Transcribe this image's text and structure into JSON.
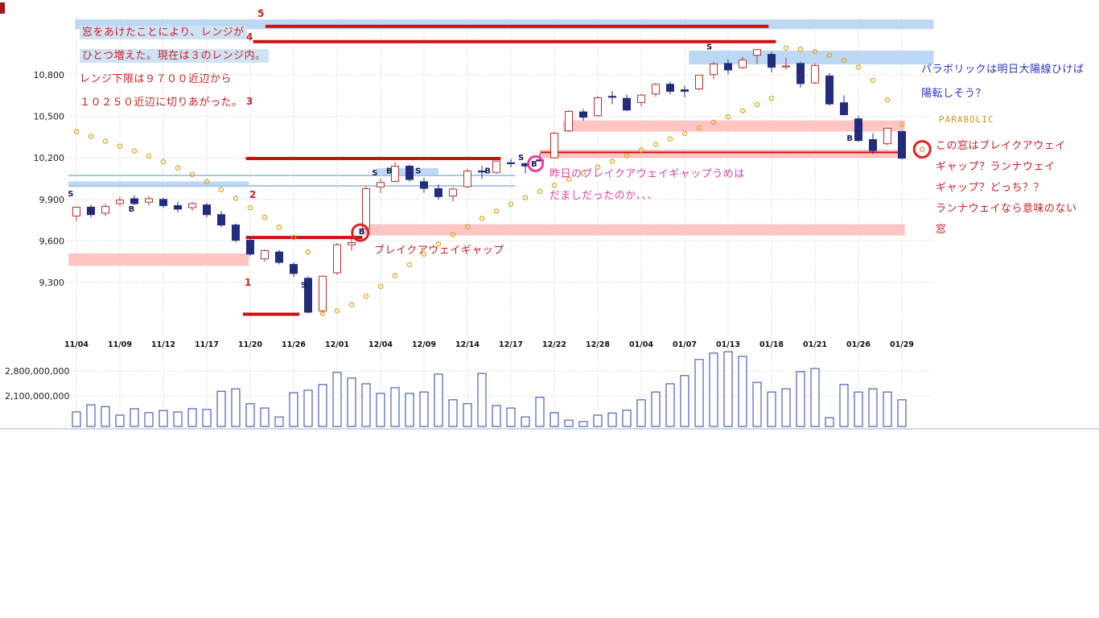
{
  "annotations": {
    "range_note": {
      "lines": [
        "窓をあけたことにより、レンジが",
        "ひとつ増えた。現在は３のレンジ内。",
        "レンジ下限は９７００近辺から",
        "１０２５０近辺に切りあがった。"
      ]
    },
    "parabolic_note": {
      "lines": [
        "パラボリックは明日大陽線ひけば",
        "陽転しそう？"
      ]
    },
    "indicator_label": "PARABOLIC",
    "gap_question": {
      "lines": [
        "この窓はブレイクアウェイ",
        "ギャップ？ランナウェイ",
        "ギャップ？どっち？？",
        "ランナウェイなら意味のない",
        "窓"
      ]
    },
    "gap_fill_note": {
      "lines": [
        "昨日のブレイクアウェイギャップうめは",
        "だましだったのか、、、"
      ]
    },
    "breakaway_label": "ブレイクアウェイギャップ",
    "range_numbers": [
      "1",
      "2",
      "3",
      "4",
      "5"
    ]
  },
  "chart_data": {
    "type": "candlestick+volume",
    "title": "",
    "xlabel": "",
    "ylabel": "",
    "grid": true,
    "x_labels_every": 3,
    "y_axis": {
      "ticks": [
        {
          "label": "10,800",
          "value": 10800
        },
        {
          "label": "10,500",
          "value": 10500
        },
        {
          "label": "10,200",
          "value": 10200
        },
        {
          "label": "9,900",
          "value": 9900
        },
        {
          "label": "9,600",
          "value": 9600
        },
        {
          "label": "9,300",
          "value": 9300
        }
      ]
    },
    "volume_axis": {
      "unit": "shares",
      "ticks": [
        {
          "label": "2,800,000,000",
          "value": 2800
        },
        {
          "label": "2,100,000,000",
          "value": 2100
        }
      ]
    },
    "candles": [
      [
        "11/04",
        9780,
        9850,
        9745,
        9844
      ],
      [
        "11/05",
        9844,
        9862,
        9770,
        9790
      ],
      [
        "11/06",
        9800,
        9870,
        9780,
        9850
      ],
      [
        "11/09",
        9870,
        9920,
        9850,
        9895
      ],
      [
        "11/10",
        9905,
        9930,
        9858,
        9870
      ],
      [
        "11/11",
        9880,
        9925,
        9855,
        9905
      ],
      [
        "11/12",
        9900,
        9912,
        9838,
        9855
      ],
      [
        "11/13",
        9855,
        9882,
        9808,
        9830
      ],
      [
        "11/16",
        9840,
        9882,
        9818,
        9870
      ],
      [
        "11/17",
        9860,
        9875,
        9770,
        9790
      ],
      [
        "11/18",
        9790,
        9815,
        9700,
        9715
      ],
      [
        "11/19",
        9715,
        9725,
        9590,
        9605
      ],
      [
        "11/20",
        9605,
        9625,
        9490,
        9505
      ],
      [
        "11/24",
        9470,
        9540,
        9450,
        9530
      ],
      [
        "11/25",
        9520,
        9535,
        9430,
        9445
      ],
      [
        "11/26",
        9430,
        9445,
        9340,
        9365
      ],
      [
        "11/27",
        9330,
        9345,
        9076,
        9085
      ],
      [
        "11/30",
        9095,
        9350,
        9076,
        9345
      ],
      [
        "12/01",
        9370,
        9585,
        9355,
        9572
      ],
      [
        "12/02",
        9572,
        9632,
        9528,
        9588
      ],
      [
        "12/03",
        9690,
        9995,
        9678,
        9977
      ],
      [
        "12/04",
        9990,
        10050,
        9945,
        10022
      ],
      [
        "12/07",
        10030,
        10170,
        10022,
        10140
      ],
      [
        "12/08",
        10140,
        10152,
        10028,
        10044
      ],
      [
        "12/09",
        10028,
        10058,
        9948,
        9980
      ],
      [
        "12/10",
        9978,
        10008,
        9898,
        9920
      ],
      [
        "12/11",
        9925,
        9985,
        9885,
        9975
      ],
      [
        "12/14",
        9992,
        10120,
        9982,
        10105
      ],
      [
        "12/15",
        10105,
        10142,
        10048,
        10100
      ],
      [
        "12/16",
        10095,
        10180,
        10085,
        10177
      ],
      [
        "12/17",
        10165,
        10192,
        10132,
        10163
      ],
      [
        "12/18",
        10158,
        10166,
        10088,
        10142
      ],
      [
        "12/21",
        10185,
        10232,
        10172,
        10183
      ],
      [
        "12/22",
        10200,
        10390,
        10195,
        10378
      ],
      [
        "12/24",
        10395,
        10545,
        10388,
        10536
      ],
      [
        "12/25",
        10532,
        10552,
        10468,
        10494
      ],
      [
        "12/28",
        10505,
        10648,
        10498,
        10634
      ],
      [
        "12/29",
        10645,
        10682,
        10588,
        10638
      ],
      [
        "12/30",
        10630,
        10658,
        10538,
        10546
      ],
      [
        "01/04",
        10600,
        10662,
        10572,
        10654
      ],
      [
        "01/05",
        10662,
        10742,
        10642,
        10731
      ],
      [
        "01/06",
        10732,
        10752,
        10658,
        10681
      ],
      [
        "01/07",
        10692,
        10722,
        10638,
        10681
      ],
      [
        "01/08",
        10698,
        10800,
        10690,
        10798
      ],
      [
        "01/12",
        10802,
        10892,
        10770,
        10879
      ],
      [
        "01/13",
        10882,
        10912,
        10802,
        10835
      ],
      [
        "01/14",
        10852,
        10930,
        10842,
        10907
      ],
      [
        "01/15",
        10942,
        10985,
        10878,
        10982
      ],
      [
        "01/18",
        10948,
        10968,
        10818,
        10855
      ],
      [
        "01/19",
        10862,
        10922,
        10838,
        10864
      ],
      [
        "01/20",
        10882,
        10892,
        10708,
        10737
      ],
      [
        "01/21",
        10742,
        10882,
        10732,
        10868
      ],
      [
        "01/22",
        10792,
        10812,
        10578,
        10590
      ],
      [
        "01/25",
        10598,
        10652,
        10508,
        10512
      ],
      [
        "01/26",
        10482,
        10502,
        10318,
        10325
      ],
      [
        "01/27",
        10332,
        10378,
        10228,
        10252
      ],
      [
        "01/28",
        10302,
        10418,
        10292,
        10414
      ],
      [
        "01/29",
        10390,
        10398,
        10188,
        10198
      ]
    ],
    "volumes_millions": [
      1650,
      1850,
      1800,
      1560,
      1740,
      1630,
      1690,
      1650,
      1740,
      1720,
      2230,
      2300,
      1880,
      1760,
      1510,
      2190,
      2260,
      2420,
      2760,
      2600,
      2440,
      2170,
      2330,
      2170,
      2210,
      2710,
      1990,
      1880,
      2730,
      1830,
      1760,
      1510,
      2060,
      1630,
      1420,
      1380,
      1560,
      1620,
      1700,
      1990,
      2210,
      2440,
      2670,
      3120,
      3300,
      3340,
      3210,
      2480,
      2210,
      2300,
      2780,
      2870,
      1490,
      2420,
      2210,
      2300,
      2210,
      1990
    ],
    "parabolic_sar": [
      10390,
      10355,
      10320,
      10285,
      10250,
      10212,
      10172,
      10128,
      10080,
      10028,
      9970,
      9908,
      9840,
      9770,
      9700,
      9625,
      9520,
      9076,
      9095,
      9140,
      9200,
      9272,
      9350,
      9428,
      9505,
      9578,
      9645,
      9705,
      9762,
      9815,
      9865,
      9912,
      9958,
      10002,
      10046,
      10090,
      10133,
      10175,
      10216,
      10257,
      10297,
      10337,
      10377,
      10417,
      10457,
      10497,
      10540,
      10585,
      10630,
      10995,
      10985,
      10968,
      10942,
      10905,
      10855,
      10760,
      10620,
      10440
    ],
    "sar_projected": {
      "i": 58.4,
      "p": 10262
    },
    "signal_markers": [
      {
        "i": -0.4,
        "p": 9940,
        "t": "S"
      },
      {
        "i": 3.8,
        "p": 9830,
        "t": "B"
      },
      {
        "i": 15.7,
        "p": 9280,
        "t": "S"
      },
      {
        "i": 19.7,
        "p": 9665,
        "t": "B"
      },
      {
        "i": 20.6,
        "p": 10090,
        "t": "S"
      },
      {
        "i": 21.6,
        "p": 10105,
        "t": "B"
      },
      {
        "i": 23.6,
        "p": 10105,
        "t": "S"
      },
      {
        "i": 28.4,
        "p": 10105,
        "t": "B"
      },
      {
        "i": 30.7,
        "p": 10200,
        "t": "S"
      },
      {
        "i": 31.6,
        "p": 10155,
        "t": "B"
      },
      {
        "i": 43.7,
        "p": 11000,
        "t": "S"
      },
      {
        "i": 53.4,
        "p": 10340,
        "t": "B"
      }
    ],
    "gap_circles": [
      {
        "i": 19.6,
        "p": 9660,
        "r": 10,
        "color": "#dd2222"
      },
      {
        "i": 31.7,
        "p": 10158,
        "r": 9,
        "color": "#ee3ba0"
      },
      {
        "i": 58.4,
        "p": 10262,
        "r": 10,
        "color": "#dd2222"
      }
    ],
    "red_lines": [
      {
        "i1": 13.05,
        "i2": 47.8,
        "p": 11150,
        "w": 4
      },
      {
        "i1": 12.2,
        "i2": 48.3,
        "p": 11040,
        "w": 4
      },
      {
        "i1": 11.7,
        "i2": 29.3,
        "p": 10195,
        "w": 4
      },
      {
        "i1": 11.7,
        "i2": 19.75,
        "p": 9625,
        "w": 4
      },
      {
        "i1": 11.5,
        "i2": 15.4,
        "p": 9070,
        "w": 4
      },
      {
        "i1": 32.05,
        "i2": 57.0,
        "p": 10240,
        "w": 2
      }
    ],
    "pink_bands": [
      {
        "i1": 33.6,
        "i2": 57.2,
        "p1": 10470,
        "p2": 10390
      },
      {
        "i1": 32.0,
        "i2": 57.0,
        "p1": 10260,
        "p2": 10200
      },
      {
        "i1": 19.7,
        "i2": 57.2,
        "p1": 9720,
        "p2": 9640
      },
      {
        "i1": -0.55,
        "i2": 11.9,
        "p1": 9510,
        "p2": 9420
      }
    ],
    "blue_bands": [
      {
        "i1": -0.1,
        "i2": 59.2,
        "p1": 11200,
        "p2": 11130
      },
      {
        "i1": 42.3,
        "i2": 59.2,
        "p1": 10975,
        "p2": 10875
      },
      {
        "i1": -0.55,
        "i2": 11.9,
        "p1": 10030,
        "p2": 9990
      },
      {
        "i1": 20.7,
        "i2": 25.0,
        "p1": 10125,
        "p2": 10080
      }
    ],
    "blue_lines": [
      {
        "i1": -0.55,
        "i2": 30.3,
        "p": 10073
      },
      {
        "i1": -0.55,
        "i2": 30.3,
        "p": 9998
      }
    ],
    "colors": {
      "up": "#c03028",
      "down": "#232c7c",
      "sar": "#dfa520",
      "red_line": "#cc1111",
      "pink_band": "#ffc4c4",
      "blue_band": "#bcd8f4",
      "blue_line": "#a5c8ea",
      "volume": "#2b3faf",
      "grid": "#c9c9c9",
      "axis_text": "#1a1a1a",
      "baseline": "#9fb0d0"
    }
  }
}
